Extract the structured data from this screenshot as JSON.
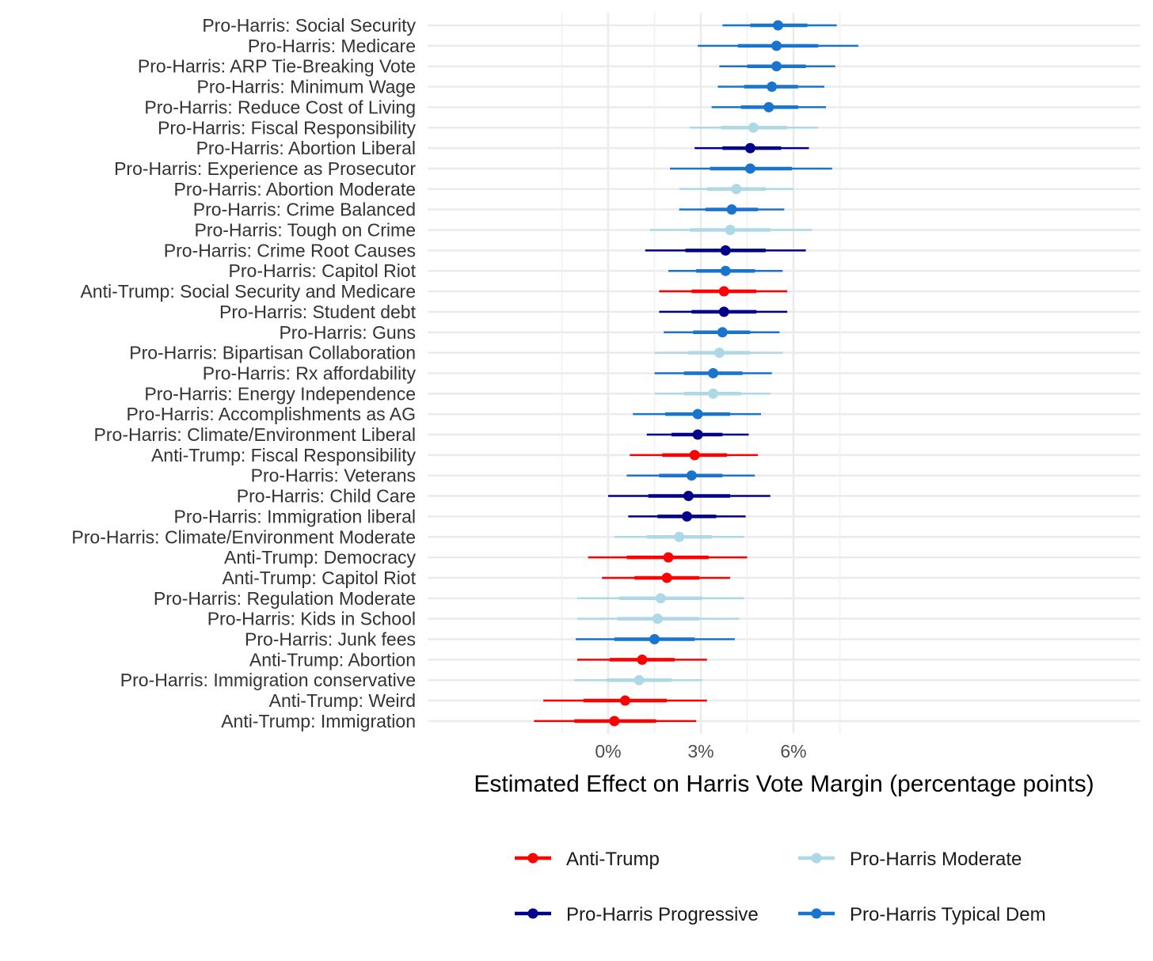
{
  "chart_data": {
    "type": "forest",
    "xlabel": "Estimated Effect on Harris Vote Margin (percentage points)",
    "xlim": [
      -2.8,
      8.5
    ],
    "x_ticks": [
      0,
      3,
      6
    ],
    "x_tick_labels": [
      "0%",
      "3%",
      "6%"
    ],
    "x_minor_grid": [
      -1.5,
      1.5,
      4.5,
      7.5
    ],
    "grid": true,
    "legend_position": "bottom",
    "groups": [
      {
        "key": "anti_trump",
        "name": "Anti-Trump",
        "color": "#ff0000"
      },
      {
        "key": "moderate",
        "name": "Pro-Harris Moderate",
        "color": "#add8e6"
      },
      {
        "key": "progressive",
        "name": "Pro-Harris Progressive",
        "color": "#00008b"
      },
      {
        "key": "typical",
        "name": "Pro-Harris Typical Dem",
        "color": "#1874cd"
      }
    ],
    "items": [
      {
        "label": "Pro-Harris: Social Security",
        "group": "typical",
        "est": 5.5,
        "ci50": [
          4.6,
          6.45
        ],
        "ci95": [
          3.7,
          7.4
        ]
      },
      {
        "label": "Pro-Harris: Medicare",
        "group": "typical",
        "est": 5.45,
        "ci50": [
          4.2,
          6.8
        ],
        "ci95": [
          2.9,
          8.1
        ]
      },
      {
        "label": "Pro-Harris: ARP Tie-Breaking Vote",
        "group": "typical",
        "est": 5.45,
        "ci50": [
          4.5,
          6.4
        ],
        "ci95": [
          3.6,
          7.35
        ]
      },
      {
        "label": "Pro-Harris: Minimum Wage",
        "group": "typical",
        "est": 5.3,
        "ci50": [
          4.4,
          6.15
        ],
        "ci95": [
          3.55,
          7.0
        ]
      },
      {
        "label": "Pro-Harris: Reduce Cost of Living",
        "group": "typical",
        "est": 5.2,
        "ci50": [
          4.3,
          6.15
        ],
        "ci95": [
          3.35,
          7.05
        ]
      },
      {
        "label": "Pro-Harris: Fiscal Responsibility",
        "group": "moderate",
        "est": 4.7,
        "ci50": [
          3.65,
          5.8
        ],
        "ci95": [
          2.65,
          6.8
        ]
      },
      {
        "label": "Pro-Harris: Abortion Liberal",
        "group": "progressive",
        "est": 4.6,
        "ci50": [
          3.7,
          5.6
        ],
        "ci95": [
          2.8,
          6.5
        ]
      },
      {
        "label": "Pro-Harris: Experience as Prosecutor",
        "group": "typical",
        "est": 4.6,
        "ci50": [
          3.3,
          5.95
        ],
        "ci95": [
          2.0,
          7.25
        ]
      },
      {
        "label": "Pro-Harris: Abortion Moderate",
        "group": "moderate",
        "est": 4.15,
        "ci50": [
          3.2,
          5.1
        ],
        "ci95": [
          2.3,
          6.0
        ]
      },
      {
        "label": "Pro-Harris: Crime Balanced",
        "group": "typical",
        "est": 4.0,
        "ci50": [
          3.15,
          4.85
        ],
        "ci95": [
          2.3,
          5.7
        ]
      },
      {
        "label": "Pro-Harris: Tough on Crime",
        "group": "moderate",
        "est": 3.95,
        "ci50": [
          2.65,
          5.25
        ],
        "ci95": [
          1.35,
          6.6
        ]
      },
      {
        "label": "Pro-Harris: Crime Root Causes",
        "group": "progressive",
        "est": 3.8,
        "ci50": [
          2.5,
          5.1
        ],
        "ci95": [
          1.2,
          6.4
        ]
      },
      {
        "label": "Pro-Harris: Capitol Riot",
        "group": "typical",
        "est": 3.8,
        "ci50": [
          2.85,
          4.75
        ],
        "ci95": [
          1.95,
          5.65
        ]
      },
      {
        "label": "Anti-Trump: Social Security and Medicare",
        "group": "anti_trump",
        "est": 3.75,
        "ci50": [
          2.7,
          4.8
        ],
        "ci95": [
          1.65,
          5.8
        ]
      },
      {
        "label": "Pro-Harris: Student debt",
        "group": "progressive",
        "est": 3.75,
        "ci50": [
          2.7,
          4.8
        ],
        "ci95": [
          1.65,
          5.8
        ]
      },
      {
        "label": "Pro-Harris: Guns",
        "group": "typical",
        "est": 3.7,
        "ci50": [
          2.75,
          4.6
        ],
        "ci95": [
          1.8,
          5.55
        ]
      },
      {
        "label": "Pro-Harris: Bipartisan Collaboration",
        "group": "moderate",
        "est": 3.6,
        "ci50": [
          2.6,
          4.6
        ],
        "ci95": [
          1.5,
          5.65
        ]
      },
      {
        "label": "Pro-Harris: Rx affordability",
        "group": "typical",
        "est": 3.4,
        "ci50": [
          2.45,
          4.35
        ],
        "ci95": [
          1.5,
          5.3
        ]
      },
      {
        "label": "Pro-Harris: Energy Independence",
        "group": "moderate",
        "est": 3.4,
        "ci50": [
          2.45,
          4.3
        ],
        "ci95": [
          1.5,
          5.25
        ]
      },
      {
        "label": "Pro-Harris: Accomplishments as AG",
        "group": "typical",
        "est": 2.9,
        "ci50": [
          1.85,
          3.95
        ],
        "ci95": [
          0.8,
          4.95
        ]
      },
      {
        "label": "Pro-Harris: Climate/Environment Liberal",
        "group": "progressive",
        "est": 2.9,
        "ci50": [
          2.05,
          3.7
        ],
        "ci95": [
          1.25,
          4.55
        ]
      },
      {
        "label": "Anti-Trump: Fiscal Responsibility",
        "group": "anti_trump",
        "est": 2.8,
        "ci50": [
          1.75,
          3.85
        ],
        "ci95": [
          0.7,
          4.85
        ]
      },
      {
        "label": "Pro-Harris: Veterans",
        "group": "typical",
        "est": 2.7,
        "ci50": [
          1.65,
          3.7
        ],
        "ci95": [
          0.6,
          4.75
        ]
      },
      {
        "label": "Pro-Harris: Child Care",
        "group": "progressive",
        "est": 2.6,
        "ci50": [
          1.3,
          3.95
        ],
        "ci95": [
          0.0,
          5.25
        ]
      },
      {
        "label": "Pro-Harris: Immigration liberal",
        "group": "progressive",
        "est": 2.55,
        "ci50": [
          1.6,
          3.5
        ],
        "ci95": [
          0.65,
          4.45
        ]
      },
      {
        "label": "Pro-Harris: Climate/Environment Moderate",
        "group": "moderate",
        "est": 2.3,
        "ci50": [
          1.25,
          3.35
        ],
        "ci95": [
          0.2,
          4.4
        ]
      },
      {
        "label": "Anti-Trump: Democracy",
        "group": "anti_trump",
        "est": 1.95,
        "ci50": [
          0.6,
          3.25
        ],
        "ci95": [
          -0.65,
          4.5
        ]
      },
      {
        "label": "Anti-Trump: Capitol Riot",
        "group": "anti_trump",
        "est": 1.9,
        "ci50": [
          0.85,
          2.95
        ],
        "ci95": [
          -0.2,
          3.95
        ]
      },
      {
        "label": "Pro-Harris: Regulation Moderate",
        "group": "moderate",
        "est": 1.7,
        "ci50": [
          0.35,
          3.05
        ],
        "ci95": [
          -1.0,
          4.4
        ]
      },
      {
        "label": "Pro-Harris: Kids in School",
        "group": "moderate",
        "est": 1.6,
        "ci50": [
          0.3,
          2.95
        ],
        "ci95": [
          -1.0,
          4.25
        ]
      },
      {
        "label": "Pro-Harris: Junk fees",
        "group": "typical",
        "est": 1.5,
        "ci50": [
          0.2,
          2.8
        ],
        "ci95": [
          -1.05,
          4.1
        ]
      },
      {
        "label": "Anti-Trump: Abortion",
        "group": "anti_trump",
        "est": 1.1,
        "ci50": [
          0.05,
          2.15
        ],
        "ci95": [
          -1.0,
          3.2
        ]
      },
      {
        "label": "Pro-Harris: Immigration conservative",
        "group": "moderate",
        "est": 1.0,
        "ci50": [
          -0.05,
          2.05
        ],
        "ci95": [
          -1.1,
          3.05
        ]
      },
      {
        "label": "Anti-Trump: Weird",
        "group": "anti_trump",
        "est": 0.55,
        "ci50": [
          -0.8,
          1.9
        ],
        "ci95": [
          -2.1,
          3.2
        ]
      },
      {
        "label": "Anti-Trump: Immigration",
        "group": "anti_trump",
        "est": 0.2,
        "ci50": [
          -1.1,
          1.55
        ],
        "ci95": [
          -2.4,
          2.85
        ]
      }
    ]
  }
}
